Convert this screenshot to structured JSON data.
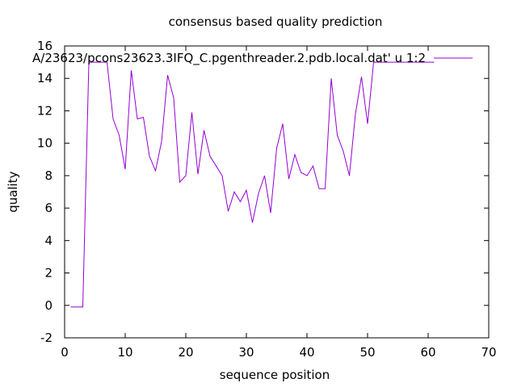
{
  "chart_data": {
    "type": "line",
    "title": "consensus based quality prediction",
    "xlabel": "sequence position",
    "ylabel": "quality",
    "xlim": [
      0,
      70
    ],
    "ylim": [
      -2,
      16
    ],
    "xticks": [
      0,
      10,
      20,
      30,
      40,
      50,
      60,
      70
    ],
    "yticks": [
      -2,
      0,
      2,
      4,
      6,
      8,
      10,
      12,
      14,
      16
    ],
    "grid": false,
    "legend_position": "top-right",
    "series": [
      {
        "name": "A/23623/pcons23623.3IFQ_C.pgenthreader.2.pdb.local.dat' u 1:2",
        "color": "#9400d3",
        "x": [
          1,
          2,
          3,
          4,
          5,
          6,
          7,
          8,
          9,
          10,
          11,
          12,
          13,
          14,
          15,
          16,
          17,
          18,
          19,
          20,
          21,
          22,
          23,
          24,
          25,
          26,
          27,
          28,
          29,
          30,
          31,
          32,
          33,
          34,
          35,
          36,
          37,
          38,
          39,
          40,
          41,
          42,
          43,
          44,
          45,
          46,
          47,
          48,
          49,
          50,
          51,
          52,
          53,
          54,
          55,
          56,
          57,
          58,
          59,
          60,
          61
        ],
        "y": [
          -0.1,
          -0.1,
          -0.1,
          15.0,
          15.0,
          15.0,
          15.0,
          11.5,
          10.5,
          8.4,
          14.5,
          11.5,
          11.6,
          9.2,
          8.3,
          10.1,
          14.2,
          12.8,
          7.6,
          8.0,
          11.9,
          8.1,
          10.8,
          9.2,
          8.6,
          8.0,
          5.8,
          7.0,
          6.4,
          7.1,
          5.1,
          6.9,
          8.0,
          5.7,
          9.7,
          11.2,
          7.8,
          9.3,
          8.2,
          8.0,
          8.6,
          7.2,
          7.2,
          14.0,
          10.5,
          9.5,
          8.0,
          11.8,
          14.1,
          11.2,
          15.0,
          15.0,
          15.0,
          15.0,
          15.0,
          15.0,
          15.0,
          15.0,
          15.0,
          15.0,
          15.0
        ]
      }
    ]
  }
}
